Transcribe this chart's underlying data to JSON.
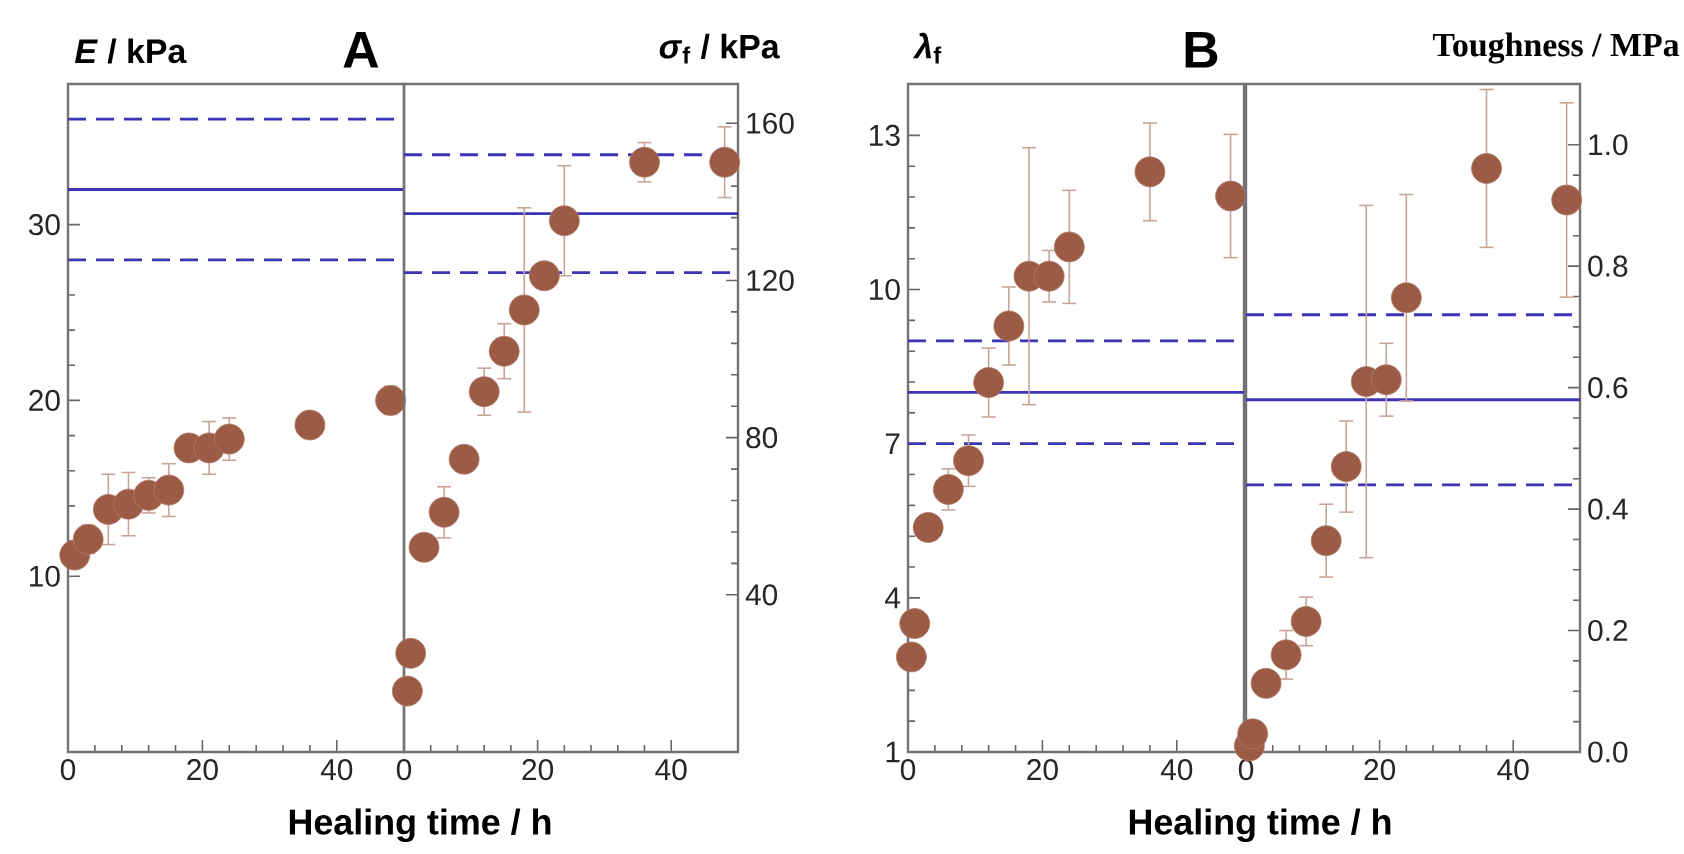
{
  "chart_data": [
    {
      "type": "scatter",
      "title": "A",
      "xlabel": "Healing time / h",
      "ylabel": "*E* / kPa",
      "x": [
        1,
        3,
        6,
        9,
        12,
        15,
        18,
        21,
        24,
        36,
        48
      ],
      "series": [
        {
          "color": "#9b5b45",
          "values": [
            11.2,
            12.1,
            13.8,
            14.1,
            14.6,
            14.9,
            17.3,
            17.3,
            17.8,
            18.6,
            20.0
          ],
          "errors": [
            null,
            0.8,
            2,
            1.8,
            1,
            1.5,
            0.5,
            1.5,
            1.2,
            null,
            0.8
          ]
        }
      ],
      "xlim": [
        0,
        50
      ],
      "xticks": [
        0,
        20,
        40
      ],
      "ylim": [
        0,
        38
      ],
      "yticks": [
        10,
        20,
        30
      ],
      "ref_lines": [
        {
          "axis": "y",
          "value": 32,
          "color": "#3c34b4",
          "line_style": "solid"
        },
        {
          "axis": "y",
          "value": 36,
          "color": "#3c34b4",
          "line_style": "dashed"
        },
        {
          "axis": "y",
          "value": 28,
          "color": "#3c34b4",
          "line_style": "dashed"
        }
      ]
    },
    {
      "type": "scatter",
      "ylabel": "*σ*$_{f}$ / kPa",
      "x": [
        0.5,
        1,
        3,
        6,
        9,
        12,
        15,
        18,
        21,
        24,
        36,
        48
      ],
      "series": [
        {
          "color": "#9b5b45",
          "values": [
            15.5,
            25.1,
            52.1,
            61,
            74.5,
            91.7,
            102,
            112.5,
            121.2,
            135.2,
            150.1,
            150.1
          ],
          "errors": [
            null,
            null,
            null,
            6.5,
            3,
            6,
            7,
            26,
            null,
            14,
            5,
            9
          ]
        }
      ],
      "xlim": [
        0,
        50
      ],
      "xticks": [
        0,
        20,
        40
      ],
      "ylim": [
        0,
        170
      ],
      "yticks": [
        40,
        80,
        120,
        160
      ],
      "ref_lines": [
        {
          "axis": "y",
          "value": 137,
          "color": "#3c34b4",
          "line_style": "solid"
        },
        {
          "axis": "y",
          "value": 152,
          "color": "#3c34b4",
          "line_style": "dashed"
        },
        {
          "axis": "y",
          "value": 122,
          "color": "#3c34b4",
          "line_style": "dashed"
        }
      ]
    },
    {
      "type": "scatter",
      "title": "B",
      "xlabel": "Healing time / h",
      "ylabel": "*λ*$_{f}$",
      "x": [
        0.5,
        1,
        3,
        6,
        9,
        12,
        15,
        18,
        21,
        24,
        36,
        48
      ],
      "series": [
        {
          "color": "#9b5b45",
          "values": [
            2.85,
            3.5,
            5.37,
            6.11,
            6.67,
            8.19,
            9.29,
            10.26,
            10.26,
            10.83,
            12.29,
            11.82
          ],
          "errors": [
            null,
            null,
            null,
            0.4,
            0.5,
            0.67,
            0.76,
            2.5,
            0.5,
            1.1,
            0.95,
            1.2
          ]
        }
      ],
      "xlim": [
        0,
        50
      ],
      "xticks": [
        0,
        20,
        40
      ],
      "ylim": [
        1,
        14
      ],
      "yticks": [
        1,
        4,
        7,
        10,
        13
      ],
      "ref_lines": [
        {
          "axis": "y",
          "value": 8,
          "color": "#3c34b4",
          "line_style": "solid"
        },
        {
          "axis": "y",
          "value": 9,
          "color": "#3c34b4",
          "line_style": "dashed"
        },
        {
          "axis": "y",
          "value": 7,
          "color": "#3c34b4",
          "line_style": "dashed"
        }
      ]
    },
    {
      "type": "scatter",
      "ylabel": "Toughness / MPa",
      "x": [
        0.5,
        1,
        3,
        6,
        9,
        12,
        15,
        18,
        21,
        24,
        36,
        48
      ],
      "series": [
        {
          "color": "#9b5b45",
          "values": [
            0.01,
            0.03,
            0.113,
            0.16,
            0.215,
            0.348,
            0.47,
            0.61,
            0.613,
            0.748,
            0.961,
            0.909
          ],
          "errors": [
            null,
            null,
            null,
            0.04,
            0.04,
            0.06,
            0.075,
            0.29,
            0.06,
            0.17,
            0.13,
            0.16
          ]
        }
      ],
      "xlim": [
        0,
        50
      ],
      "xticks": [
        0,
        20,
        40
      ],
      "ylim": [
        0,
        1.1
      ],
      "yticks": [
        {
          "value": 0,
          "label": "0.0"
        },
        0.2,
        0.4,
        0.6,
        0.8,
        {
          "value": 1,
          "label": "1.0"
        }
      ],
      "ref_lines": [
        {
          "axis": "y",
          "value": 0.58,
          "color": "#3c34b4",
          "line_style": "solid"
        },
        {
          "axis": "y",
          "value": 0.72,
          "color": "#3c34b4",
          "line_style": "dashed"
        },
        {
          "axis": "y",
          "value": 0.44,
          "color": "#3c34b4",
          "line_style": "dashed"
        }
      ]
    }
  ]
}
